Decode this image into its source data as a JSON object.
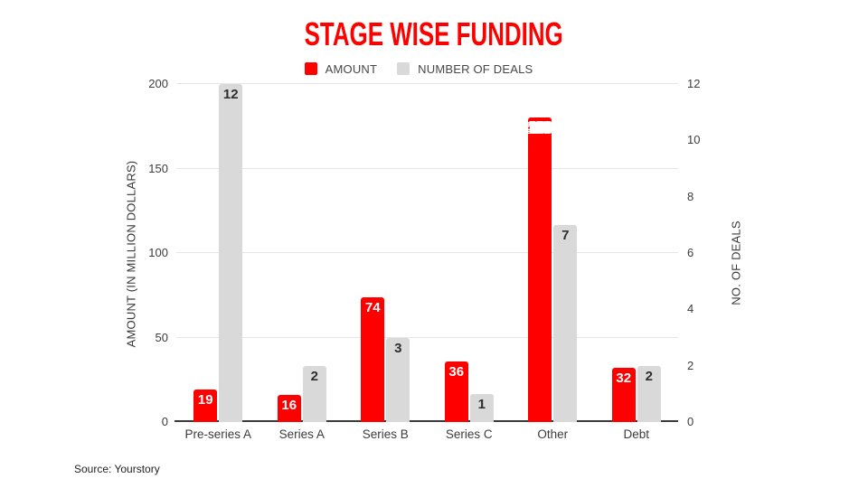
{
  "title": "STAGE WISE FUNDING",
  "source": "Source: Yourstory",
  "colors": {
    "amount": "#fe0000",
    "deals": "#d9d9d9",
    "title": "#fe0000",
    "gridline": "#e6e6e6",
    "axis_line": "#3a3a3a"
  },
  "chart_data": {
    "type": "bar",
    "title": "STAGE WISE FUNDING",
    "categories": [
      "Pre-series A",
      "Series A",
      "Series B",
      "Series C",
      "Other",
      "Debt"
    ],
    "series": [
      {
        "name": "AMOUNT",
        "axis": "left",
        "color": "#fe0000",
        "label_color": "#ffffff",
        "values": [
          19,
          16,
          74,
          36,
          180,
          32
        ],
        "outlined_label_values": [
          180
        ]
      },
      {
        "name": "NUMBER OF DEALS",
        "axis": "right",
        "color": "#d9d9d9",
        "label_color": "#2e2e2e",
        "values": [
          12,
          2,
          3,
          1,
          7,
          2
        ]
      }
    ],
    "axes": {
      "left": {
        "title": "AMOUNT (IN MILLION DOLLARS)",
        "min": 0,
        "max": 200,
        "ticks": [
          0,
          50,
          100,
          150,
          200
        ]
      },
      "right": {
        "title": "NO. OF DEALS",
        "min": 0,
        "max": 12,
        "ticks": [
          0,
          2,
          4,
          6,
          8,
          10,
          12
        ]
      }
    },
    "legend_position": "top",
    "grid": true
  }
}
